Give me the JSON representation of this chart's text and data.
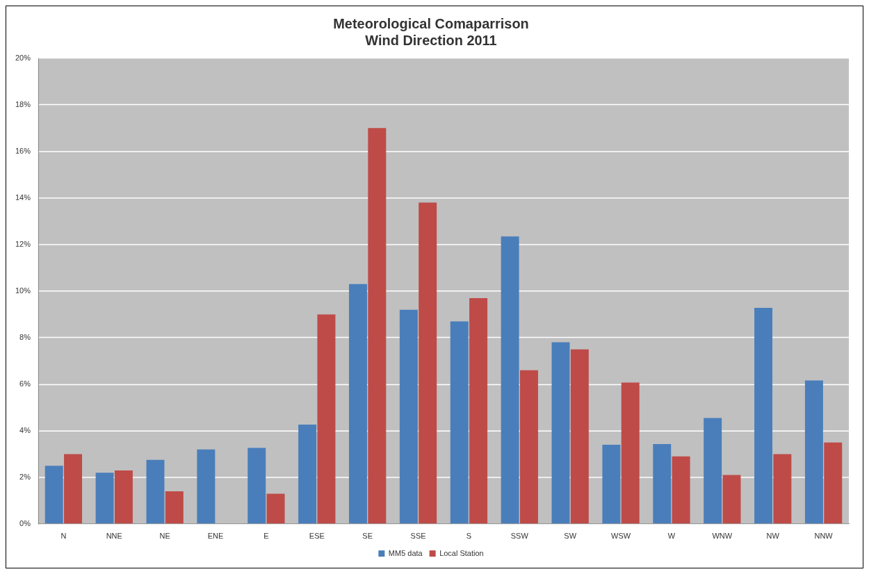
{
  "chart_data": {
    "type": "bar",
    "title": "Meteorological Comaparrison",
    "subtitle": "Wind Direction 2011",
    "categories": [
      "N",
      "NNE",
      "NE",
      "ENE",
      "E",
      "ESE",
      "SE",
      "SSE",
      "S",
      "SSW",
      "SW",
      "WSW",
      "W",
      "WNW",
      "NW",
      "NNW"
    ],
    "series": [
      {
        "name": "MM5 data",
        "color": "#4a7ebb",
        "values": [
          2.5,
          2.2,
          2.75,
          3.2,
          3.27,
          4.27,
          10.3,
          9.2,
          8.7,
          12.35,
          7.8,
          3.4,
          3.43,
          4.55,
          9.28,
          6.16
        ]
      },
      {
        "name": "Local Station",
        "color": "#be4b48",
        "values": [
          3.0,
          2.3,
          1.4,
          0,
          1.3,
          9.0,
          17.0,
          13.8,
          9.7,
          6.6,
          7.5,
          6.07,
          2.9,
          2.1,
          3.0,
          3.5
        ]
      }
    ],
    "ylim": [
      0,
      20
    ],
    "yticks": [
      {
        "value": 0,
        "label": "0%"
      },
      {
        "value": 2,
        "label": "2%"
      },
      {
        "value": 4,
        "label": "4%"
      },
      {
        "value": 6,
        "label": "6%"
      },
      {
        "value": 8,
        "label": "8%"
      },
      {
        "value": 10,
        "label": "10%"
      },
      {
        "value": 12,
        "label": "12%"
      },
      {
        "value": 14,
        "label": "14%"
      },
      {
        "value": 16,
        "label": "16%"
      },
      {
        "value": 18,
        "label": "18%"
      },
      {
        "value": 20,
        "label": "20%"
      }
    ],
    "grid": "y",
    "legend": "bottom"
  }
}
